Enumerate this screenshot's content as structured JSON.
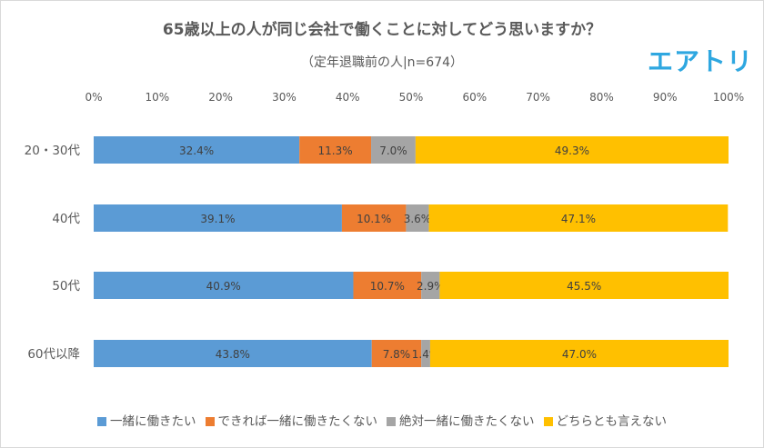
{
  "chart_data": {
    "type": "bar",
    "orientation": "horizontal",
    "stacked": "percent",
    "title": "65歳以上の人が同じ会社で働くことに対してどう思いますか？",
    "subtitle": "（定年退職前の人|n=674）",
    "categories": [
      "20・30代",
      "40代",
      "50代",
      "60代以降"
    ],
    "xlim": [
      0,
      100
    ],
    "xticks": [
      "0%",
      "10%",
      "20%",
      "30%",
      "40%",
      "50%",
      "60%",
      "70%",
      "80%",
      "90%",
      "100%"
    ],
    "grid": false,
    "legend_position": "bottom",
    "series": [
      {
        "name": "一緒に働きたい",
        "color": "#5b9bd5",
        "values": [
          32.4,
          39.1,
          40.9,
          43.8
        ],
        "labels": [
          "32.4%",
          "39.1%",
          "40.9%",
          "43.8%"
        ]
      },
      {
        "name": "できれば一緒に働きたくない",
        "color": "#ed7d31",
        "values": [
          11.3,
          10.1,
          10.7,
          7.8
        ],
        "labels": [
          "11.3%",
          "10.1%",
          "10.7%",
          "7.8%"
        ]
      },
      {
        "name": "絶対一緒に働きたくない",
        "color": "#a5a5a5",
        "values": [
          7.0,
          3.6,
          2.9,
          1.4
        ],
        "labels": [
          "7.0%",
          "3.6%",
          "2.9%",
          "1.4%"
        ]
      },
      {
        "name": "どちらとも言えない",
        "color": "#ffc000",
        "values": [
          49.3,
          47.1,
          45.5,
          47.0
        ],
        "labels": [
          "49.3%",
          "47.1%",
          "45.5%",
          "47.0%"
        ]
      }
    ]
  },
  "logo": "エアトリ"
}
